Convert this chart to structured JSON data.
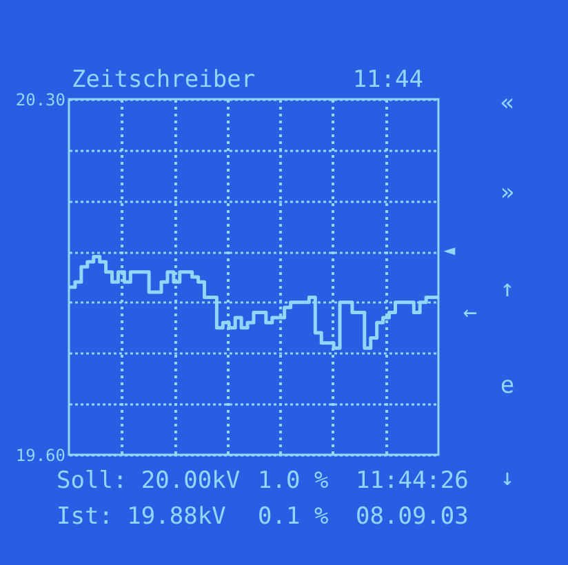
{
  "chart_data": {
    "type": "step",
    "title": "Zeitschreiber",
    "subtitle": "11:44",
    "categories": [
      null,
      null,
      null,
      null,
      null,
      null,
      null,
      null,
      null,
      null,
      null,
      null,
      null,
      null,
      null,
      null,
      null,
      null,
      null,
      null,
      null,
      null,
      null,
      null,
      null,
      null,
      null,
      null,
      null,
      null,
      null,
      null,
      null,
      null,
      null,
      null,
      null,
      null,
      null,
      null,
      null,
      null,
      null,
      null,
      null,
      null,
      null,
      null,
      null,
      null,
      null,
      null,
      null,
      null,
      null,
      null,
      null,
      null,
      null,
      null,
      null
    ],
    "series": [
      {
        "color": "#92d6fa",
        "values": [
          19.93,
          19.94,
          19.97,
          19.98,
          19.99,
          19.98,
          19.96,
          19.94,
          19.96,
          19.94,
          19.96,
          19.96,
          19.96,
          19.92,
          19.92,
          19.94,
          19.96,
          19.94,
          19.96,
          19.96,
          19.95,
          19.94,
          19.91,
          19.91,
          19.85,
          19.86,
          19.85,
          19.87,
          19.85,
          19.86,
          19.88,
          19.88,
          19.86,
          19.87,
          19.87,
          19.89,
          19.9,
          19.9,
          19.9,
          19.91,
          19.84,
          19.82,
          19.82,
          19.81,
          19.9,
          19.9,
          19.88,
          19.88,
          19.81,
          19.83,
          19.86,
          19.87,
          19.88,
          19.9,
          19.9,
          19.9,
          19.88,
          19.9,
          19.91,
          19.91,
          19.91
        ]
      }
    ],
    "ylim": [
      19.6,
      20.3
    ],
    "yticks": [
      {
        "value": 19.6,
        "label": "19.60"
      },
      {
        "value": 19.7,
        "label": null
      },
      {
        "value": 19.8,
        "label": null
      },
      {
        "value": 19.9,
        "label": null
      },
      {
        "value": 20.0,
        "label": null
      },
      {
        "value": 20.1,
        "label": null
      },
      {
        "value": 20.2,
        "label": null
      },
      {
        "value": 20.3,
        "label": "20.30"
      }
    ],
    "grid": true,
    "tick_labels": "y",
    "annotations": [
      "Soll: 20.00kV",
      "1.0 %",
      "11:44:26",
      "Ist: 19.88kV",
      "0.1 %",
      "08.09.03",
      "«",
      "»",
      "↑",
      "e",
      "↓",
      "◄",
      "←"
    ]
  }
}
